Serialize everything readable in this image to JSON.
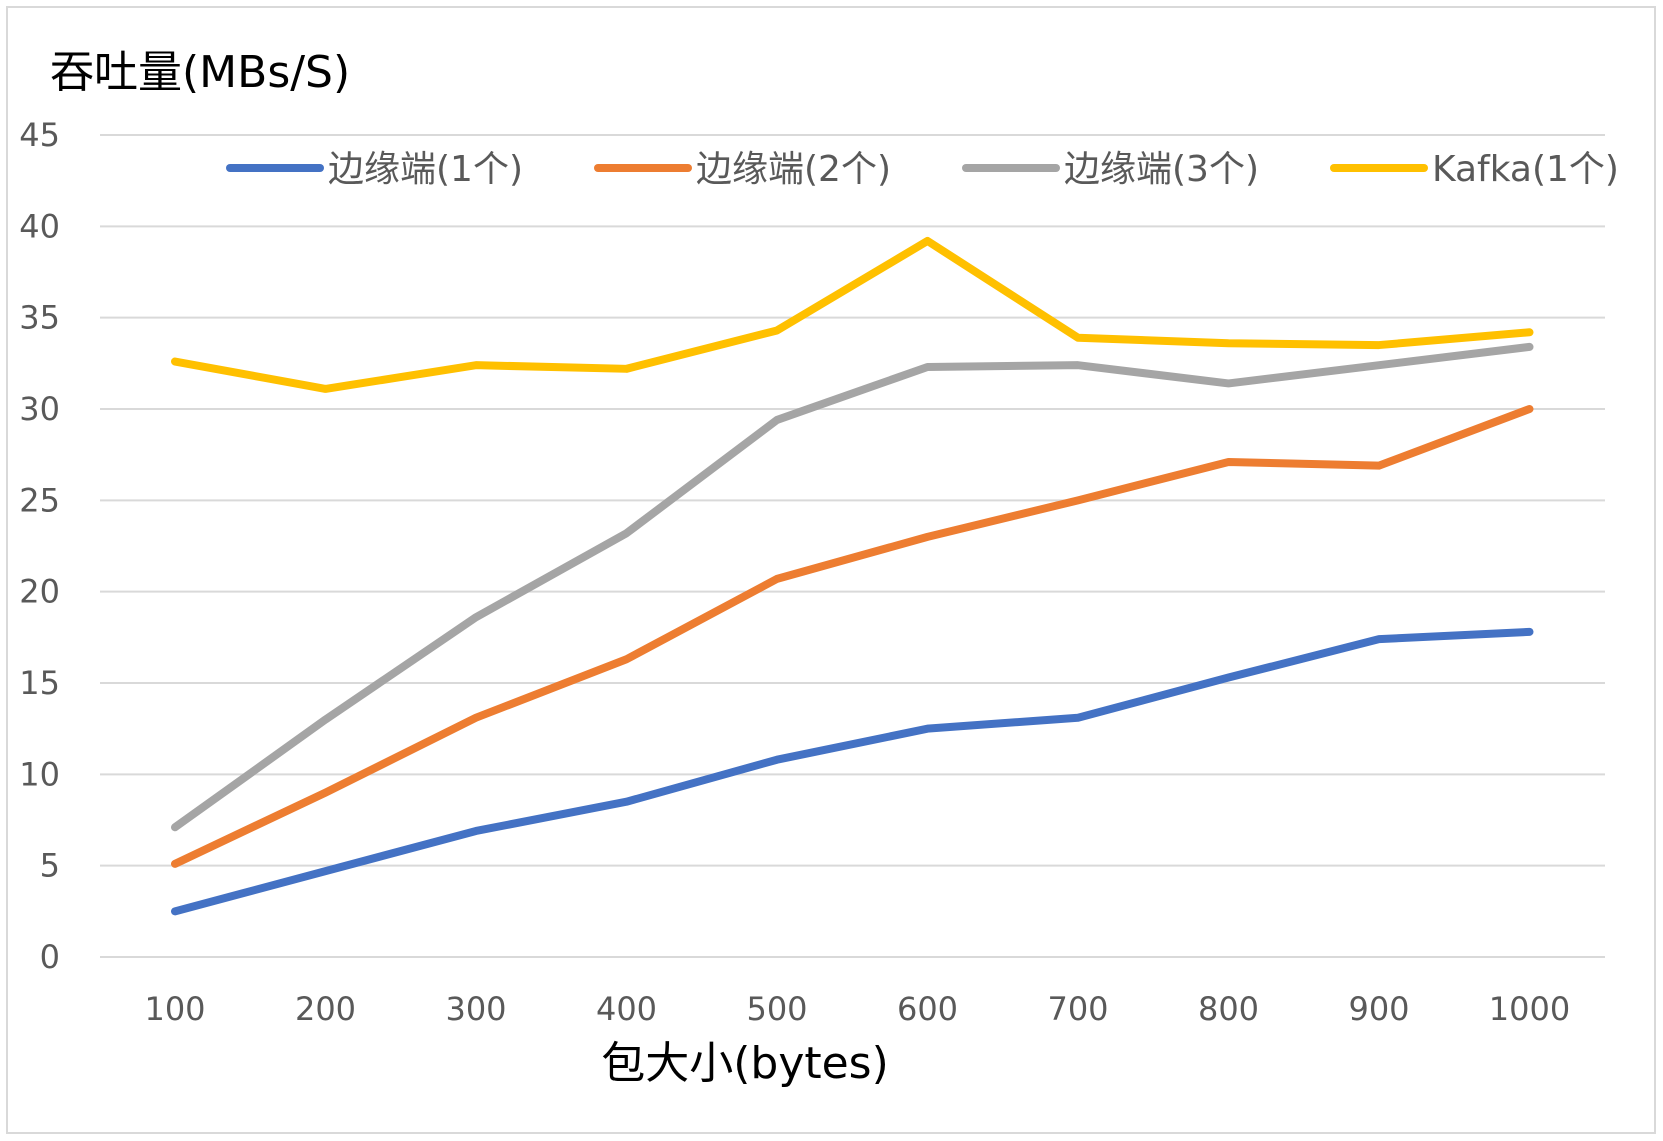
{
  "chart_data": {
    "type": "line",
    "ylabel": "吞吐量(MBs/S)",
    "xlabel": "包大小(bytes)",
    "categories": [
      "100",
      "200",
      "300",
      "400",
      "500",
      "600",
      "700",
      "800",
      "900",
      "1000"
    ],
    "ylim": [
      0,
      45
    ],
    "yticks": [
      "0",
      "5",
      "10",
      "15",
      "20",
      "25",
      "30",
      "35",
      "40",
      "45"
    ],
    "grid": true,
    "legend_position": "top",
    "series": [
      {
        "name": "边缘端(1个)",
        "color": "#4472c4",
        "values": [
          2.5,
          4.7,
          6.9,
          8.5,
          10.8,
          12.5,
          13.1,
          15.3,
          17.4,
          17.8
        ]
      },
      {
        "name": "边缘端(2个)",
        "color": "#ed7d31",
        "values": [
          5.1,
          9.0,
          13.1,
          16.3,
          20.7,
          23.0,
          25.0,
          27.1,
          26.9,
          30.0
        ]
      },
      {
        "name": "边缘端(3个)",
        "color": "#a5a5a5",
        "values": [
          7.1,
          13.0,
          18.6,
          23.2,
          29.4,
          32.3,
          32.4,
          31.4,
          32.4,
          33.4
        ]
      },
      {
        "name": "Kafka(1个)",
        "color": "#ffc000",
        "values": [
          32.6,
          31.1,
          32.4,
          32.2,
          34.3,
          39.2,
          33.9,
          33.6,
          33.5,
          34.2
        ]
      }
    ]
  }
}
